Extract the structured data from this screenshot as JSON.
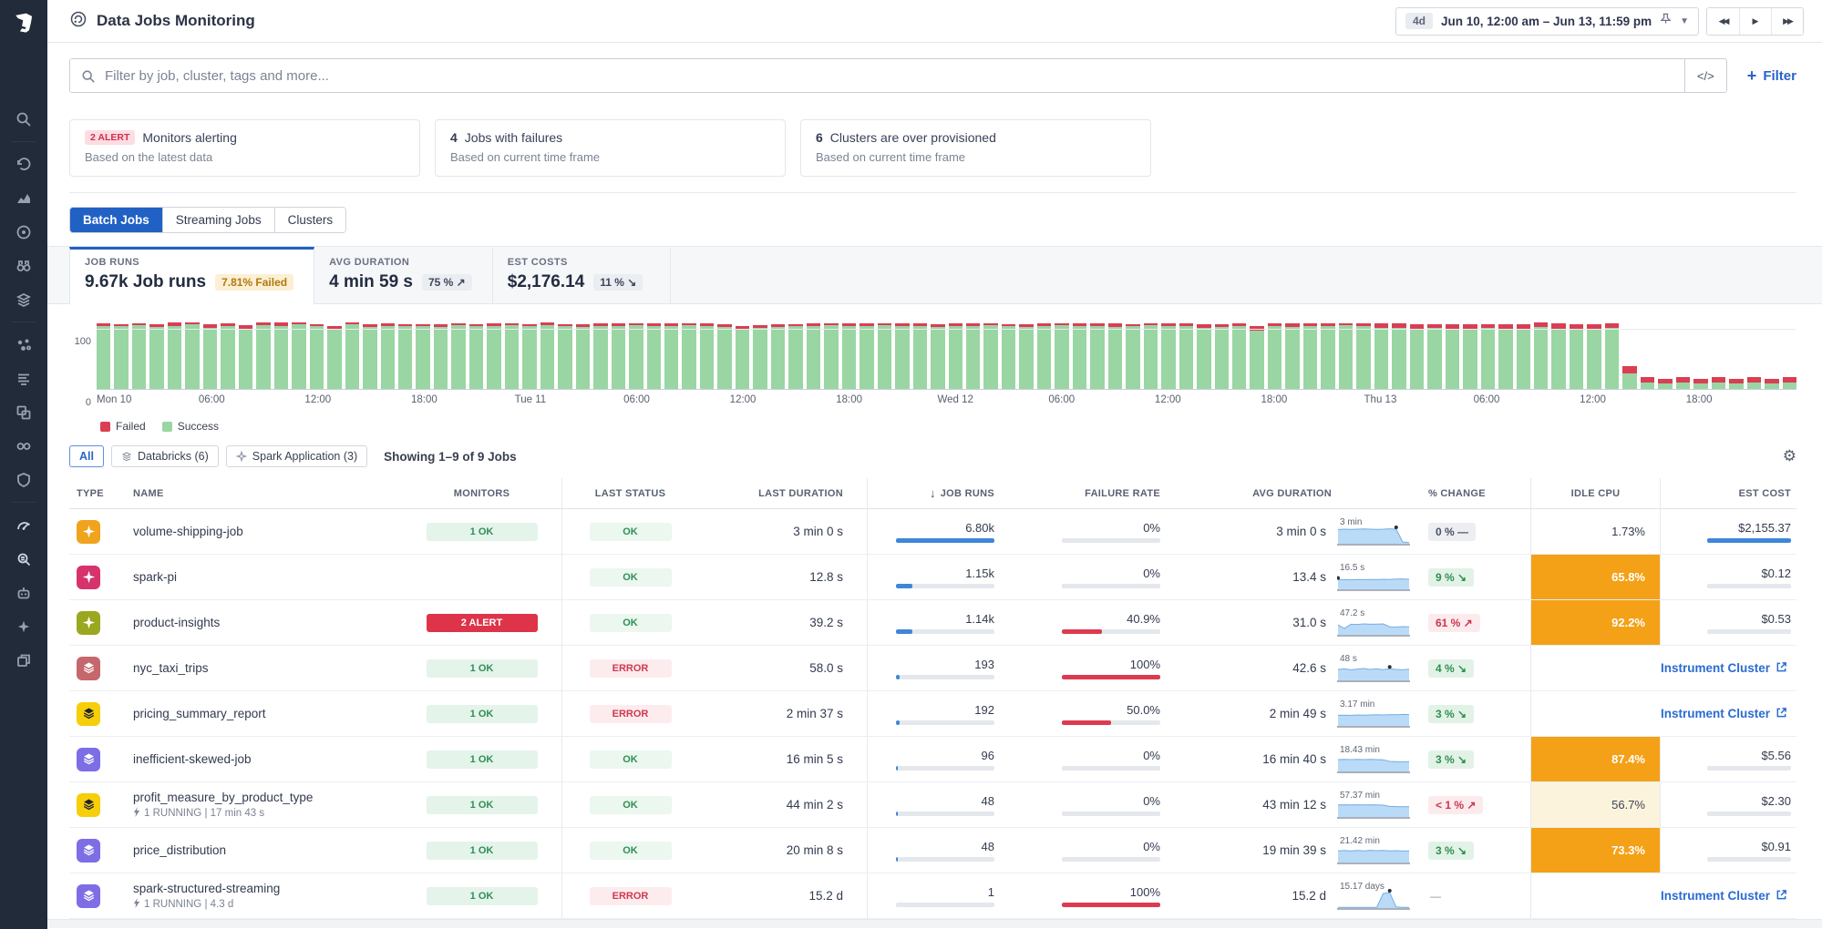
{
  "app": {
    "title": "Data Jobs Monitoring"
  },
  "header": {
    "time_badge": "4d",
    "time_range": "Jun 10, 12:00 am – Jun 13, 11:59 pm"
  },
  "search": {
    "placeholder": "Filter by job, cluster, tags and more...",
    "code_button": "</>",
    "filter_label": "Filter",
    "plus": "+"
  },
  "cards": [
    {
      "badge": "2 ALERT",
      "title": "Monitors alerting",
      "subtitle": "Based on the latest data"
    },
    {
      "count": "4",
      "title": "Jobs with failures",
      "subtitle": "Based on current time frame"
    },
    {
      "count": "6",
      "title": "Clusters are over provisioned",
      "subtitle": "Based on current time frame"
    }
  ],
  "tabs": [
    {
      "label": "Batch Jobs",
      "active": true
    },
    {
      "label": "Streaming Jobs",
      "active": false
    },
    {
      "label": "Clusters",
      "active": false
    }
  ],
  "stats": [
    {
      "label": "JOB RUNS",
      "value": "9.67k Job runs",
      "badge": "7.81% Failed",
      "badge_kind": "warning",
      "active": true
    },
    {
      "label": "AVG DURATION",
      "value": "4 min 59 s",
      "badge": "75 % ↗",
      "badge_kind": "neutral",
      "active": false
    },
    {
      "label": "EST COSTS",
      "value": "$2,176.14",
      "badge": "11 % ↘",
      "badge_kind": "neutral",
      "active": false
    }
  ],
  "chart_data": {
    "type": "bar",
    "stacked": true,
    "x_unit": "hour",
    "ylim": [
      0,
      120
    ],
    "yticks": [
      0,
      100
    ],
    "ticks": {
      "positions": [
        0,
        6,
        12,
        18,
        24,
        30,
        36,
        42,
        48,
        54,
        60,
        66,
        72,
        78,
        84,
        90
      ],
      "labels": [
        "Mon 10",
        "06:00",
        "12:00",
        "18:00",
        "Tue 11",
        "06:00",
        "12:00",
        "18:00",
        "Wed 12",
        "06:00",
        "12:00",
        "18:00",
        "Thu 13",
        "06:00",
        "12:00",
        "18:00"
      ]
    },
    "series": [
      {
        "name": "Failed",
        "color": "#da3e52",
        "values": [
          4,
          3,
          3,
          4,
          5,
          3,
          6,
          5,
          7,
          4,
          5,
          3,
          4,
          6,
          3,
          5,
          4,
          4,
          3,
          5,
          3,
          4,
          4,
          3,
          4,
          5,
          3,
          4,
          4,
          5,
          3,
          4,
          5,
          3,
          4,
          5,
          6,
          5,
          4,
          3,
          5,
          3,
          4,
          5,
          3,
          4,
          5,
          4,
          4,
          5,
          3,
          4,
          5,
          4,
          3,
          5,
          4,
          6,
          4,
          3,
          4,
          5,
          6,
          5,
          4,
          7,
          5,
          6,
          4,
          5,
          3,
          4,
          8,
          7,
          8,
          7,
          9,
          8,
          7,
          8,
          9,
          7,
          10,
          8,
          9,
          8,
          12,
          9,
          8,
          9,
          8,
          9,
          8,
          9,
          8,
          9
        ]
      },
      {
        "name": "Success",
        "color": "#99d6a3",
        "values": [
          104,
          103,
          105,
          102,
          104,
          106,
          100,
          103,
          98,
          105,
          104,
          106,
          103,
          97,
          106,
          102,
          104,
          103,
          104,
          102,
          105,
          103,
          104,
          105,
          103,
          105,
          104,
          102,
          104,
          103,
          105,
          104,
          103,
          105,
          104,
          102,
          98,
          100,
          102,
          104,
          103,
          105,
          104,
          103,
          105,
          104,
          103,
          102,
          104,
          103,
          105,
          103,
          102,
          104,
          105,
          103,
          104,
          102,
          103,
          105,
          104,
          103,
          100,
          102,
          104,
          96,
          103,
          102,
          104,
          103,
          105,
          104,
          100,
          101,
          99,
          100,
          98,
          99,
          100,
          98,
          97,
          102,
          98,
          99,
          98,
          100,
          25,
          10,
          9,
          10,
          9,
          10,
          9,
          10,
          9,
          10
        ]
      }
    ]
  },
  "filter_bar": {
    "pills": [
      {
        "label": "All",
        "active": true,
        "icon": null
      },
      {
        "label": "Databricks (6)",
        "active": false,
        "icon": "databricks"
      },
      {
        "label": "Spark Application (3)",
        "active": false,
        "icon": "spark"
      }
    ],
    "showing": "Showing 1–9 of 9 Jobs"
  },
  "table": {
    "columns": [
      "TYPE",
      "NAME",
      "MONITORS",
      "LAST STATUS",
      "LAST DURATION",
      "JOB RUNS",
      "FAILURE RATE",
      "AVG DURATION",
      "% CHANGE",
      "IDLE CPU",
      "EST COST"
    ],
    "sorted_column": "JOB RUNS",
    "rows": [
      {
        "type": "spark",
        "type_color": "#f0a31c",
        "glyph_color": "#ffffff",
        "name": "volume-shipping-job",
        "running": null,
        "monitors": {
          "label": "1 OK",
          "kind": "ok"
        },
        "status": {
          "label": "OK",
          "kind": "ok"
        },
        "last_duration": "3 min 0 s",
        "job_runs": {
          "value": "6.80k",
          "fill": 100
        },
        "failure_rate": {
          "value": "0%",
          "fill": 0
        },
        "avg_duration": {
          "value": "3 min 0 s",
          "spark_label": "3 min",
          "points": [
            78,
            80,
            79,
            80,
            81,
            80,
            79,
            80,
            82,
            80,
            10,
            6
          ],
          "dot": 9
        },
        "change": {
          "label": "0 % —",
          "kind": "neutral"
        },
        "idle_cpu": {
          "kind": "plain",
          "value": "1.73%"
        },
        "est_cost": {
          "kind": "value",
          "value": "$2,155.37",
          "fill": 100
        },
        "link_label": null
      },
      {
        "type": "spark",
        "type_color": "#d6336c",
        "glyph_color": "#ffffff",
        "name": "spark-pi",
        "running": null,
        "monitors": null,
        "status": {
          "label": "OK",
          "kind": "ok"
        },
        "last_duration": "12.8 s",
        "job_runs": {
          "value": "1.15k",
          "fill": 17
        },
        "failure_rate": {
          "value": "0%",
          "fill": 0
        },
        "avg_duration": {
          "value": "13.4 s",
          "spark_label": "16.5 s",
          "points": [
            52,
            53,
            52,
            54,
            53,
            54,
            53,
            55,
            54,
            56,
            57,
            55
          ],
          "dot": 0
        },
        "change": {
          "label": "9 % ↘",
          "kind": "good"
        },
        "idle_cpu": {
          "kind": "orange",
          "value": "65.8%"
        },
        "est_cost": {
          "kind": "value",
          "value": "$0.12",
          "fill": 0
        },
        "link_label": null
      },
      {
        "type": "spark",
        "type_color": "#9aa81f",
        "glyph_color": "#ffffff",
        "name": "product-insights",
        "running": null,
        "monitors": {
          "label": "2 ALERT",
          "kind": "alert"
        },
        "status": {
          "label": "OK",
          "kind": "ok"
        },
        "last_duration": "39.2 s",
        "job_runs": {
          "value": "1.14k",
          "fill": 17
        },
        "failure_rate": {
          "value": "40.9%",
          "fill": 41
        },
        "avg_duration": {
          "value": "31.0 s",
          "spark_label": "47.2 s",
          "points": [
            55,
            35,
            58,
            57,
            60,
            58,
            59,
            60,
            44,
            43,
            45,
            44
          ],
          "dot": null
        },
        "change": {
          "label": "61 % ↗",
          "kind": "bad"
        },
        "idle_cpu": {
          "kind": "orange",
          "value": "92.2%"
        },
        "est_cost": {
          "kind": "value",
          "value": "$0.53",
          "fill": 0
        },
        "link_label": null
      },
      {
        "type": "databricks",
        "type_color": "#c6666d",
        "glyph_color": "#ffffff",
        "name": "nyc_taxi_trips",
        "running": null,
        "monitors": {
          "label": "1 OK",
          "kind": "ok"
        },
        "status": {
          "label": "ERROR",
          "kind": "err"
        },
        "last_duration": "58.0 s",
        "job_runs": {
          "value": "193",
          "fill": 4
        },
        "failure_rate": {
          "value": "100%",
          "fill": 100
        },
        "avg_duration": {
          "value": "42.6 s",
          "spark_label": "48 s",
          "points": [
            60,
            63,
            58,
            62,
            65,
            60,
            63,
            59,
            64,
            60,
            58,
            61
          ],
          "dot": 8
        },
        "change": {
          "label": "4 % ↘",
          "kind": "good"
        },
        "idle_cpu": {
          "kind": "link"
        },
        "est_cost": {
          "kind": "link"
        },
        "link_label": "Instrument Cluster"
      },
      {
        "type": "databricks",
        "type_color": "#f6ce0a",
        "glyph_color": "#1d2330",
        "name": "pricing_summary_report",
        "running": null,
        "monitors": {
          "label": "1 OK",
          "kind": "ok"
        },
        "status": {
          "label": "ERROR",
          "kind": "err"
        },
        "last_duration": "2 min 37 s",
        "job_runs": {
          "value": "192",
          "fill": 4
        },
        "failure_rate": {
          "value": "50.0%",
          "fill": 50
        },
        "avg_duration": {
          "value": "2 min 49 s",
          "spark_label": "3.17 min",
          "points": [
            58,
            59,
            58,
            60,
            59,
            60,
            61,
            60,
            62,
            61,
            63,
            62
          ],
          "dot": null
        },
        "change": {
          "label": "3 % ↘",
          "kind": "good"
        },
        "idle_cpu": {
          "kind": "link"
        },
        "est_cost": {
          "kind": "link"
        },
        "link_label": "Instrument Cluster"
      },
      {
        "type": "databricks",
        "type_color": "#7d6ee6",
        "glyph_color": "#ffffff",
        "name": "inefficient-skewed-job",
        "running": null,
        "monitors": {
          "label": "1 OK",
          "kind": "ok"
        },
        "status": {
          "label": "OK",
          "kind": "ok"
        },
        "last_duration": "16 min 5 s",
        "job_runs": {
          "value": "96",
          "fill": 2
        },
        "failure_rate": {
          "value": "0%",
          "fill": 0
        },
        "avg_duration": {
          "value": "16 min 40 s",
          "spark_label": "18.43 min",
          "points": [
            65,
            66,
            65,
            66,
            65,
            66,
            65,
            64,
            55,
            54,
            53,
            54
          ],
          "dot": null
        },
        "change": {
          "label": "3 % ↘",
          "kind": "good"
        },
        "idle_cpu": {
          "kind": "orange",
          "value": "87.4%"
        },
        "est_cost": {
          "kind": "value",
          "value": "$5.56",
          "fill": 0
        },
        "link_label": null
      },
      {
        "type": "databricks",
        "type_color": "#f6ce0a",
        "glyph_color": "#1d2330",
        "name": "profit_measure_by_product_type",
        "running": "1 RUNNING | 17 min 43 s",
        "monitors": {
          "label": "1 OK",
          "kind": "ok"
        },
        "status": {
          "label": "OK",
          "kind": "ok"
        },
        "last_duration": "44 min 2 s",
        "job_runs": {
          "value": "48",
          "fill": 1.5
        },
        "failure_rate": {
          "value": "0%",
          "fill": 0
        },
        "avg_duration": {
          "value": "43 min 12 s",
          "spark_label": "57.37 min",
          "points": [
            66,
            67,
            66,
            67,
            66,
            67,
            66,
            65,
            58,
            57,
            56,
            57
          ],
          "dot": null
        },
        "change": {
          "label": "< 1 % ↗",
          "kind": "bad"
        },
        "idle_cpu": {
          "kind": "cream",
          "value": "56.7%"
        },
        "est_cost": {
          "kind": "value",
          "value": "$2.30",
          "fill": 0
        },
        "link_label": null
      },
      {
        "type": "databricks",
        "type_color": "#7d6ee6",
        "glyph_color": "#ffffff",
        "name": "price_distribution",
        "running": null,
        "monitors": {
          "label": "1 OK",
          "kind": "ok"
        },
        "status": {
          "label": "OK",
          "kind": "ok"
        },
        "last_duration": "20 min 8 s",
        "job_runs": {
          "value": "48",
          "fill": 1.5
        },
        "failure_rate": {
          "value": "0%",
          "fill": 0
        },
        "avg_duration": {
          "value": "19 min 39 s",
          "spark_label": "21.42 min",
          "points": [
            64,
            66,
            63,
            66,
            64,
            67,
            65,
            66,
            64,
            65,
            63,
            64
          ],
          "dot": null
        },
        "change": {
          "label": "3 % ↘",
          "kind": "good"
        },
        "idle_cpu": {
          "kind": "orange",
          "value": "73.3%"
        },
        "est_cost": {
          "kind": "value",
          "value": "$0.91",
          "fill": 0
        },
        "link_label": null
      },
      {
        "type": "databricks",
        "type_color": "#7d6ee6",
        "glyph_color": "#ffffff",
        "name": "spark-structured-streaming",
        "running": "1 RUNNING | 4.3 d",
        "monitors": {
          "label": "1 OK",
          "kind": "ok"
        },
        "status": {
          "label": "ERROR",
          "kind": "err"
        },
        "last_duration": "15.2 d",
        "job_runs": {
          "value": "1",
          "fill": 0
        },
        "failure_rate": {
          "value": "100%",
          "fill": 100
        },
        "avg_duration": {
          "value": "15.2 d",
          "spark_label": "15.17 days",
          "points": [
            4,
            4,
            4,
            4,
            4,
            4,
            4,
            80,
            85,
            6,
            4,
            4
          ],
          "dot": 8
        },
        "change": {
          "label": "—",
          "kind": "plain"
        },
        "idle_cpu": {
          "kind": "link"
        },
        "est_cost": {
          "kind": "link"
        },
        "link_label": "Instrument Cluster"
      }
    ]
  },
  "sidebar": {
    "icons": [
      "search",
      "history",
      "metrics",
      "apm",
      "watchdog",
      "integrations",
      "processes",
      "logs",
      "dashboards",
      "pipelines",
      "security",
      "monitoring",
      "data-jobs",
      "bits-ai",
      "assistant",
      "workspaces"
    ]
  }
}
